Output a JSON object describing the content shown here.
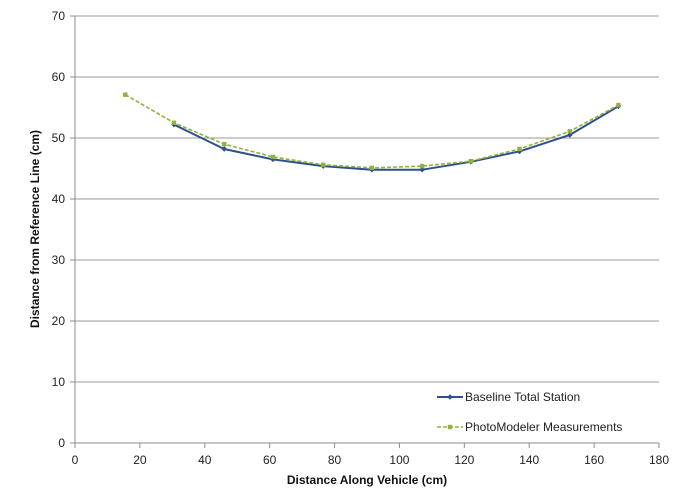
{
  "chart_data": {
    "type": "line",
    "title": "",
    "xlabel": "Distance Along Vehicle (cm)",
    "ylabel": "Distance from Reference Line (cm)",
    "xlim": [
      0,
      180
    ],
    "ylim": [
      0,
      70
    ],
    "xticks": [
      "0",
      "20",
      "40",
      "60",
      "80",
      "100",
      "120",
      "140",
      "160",
      "180"
    ],
    "yticks": [
      "0",
      "10",
      "20",
      "30",
      "40",
      "50",
      "60",
      "70"
    ],
    "grid": "horizontal",
    "legend_position": "bottom-right",
    "series": [
      {
        "name": "Baseline Total Station",
        "color": "#2f4f8f",
        "line_style": "solid",
        "marker": "diamond",
        "x": [
          30.5,
          46,
          61,
          76.5,
          91.5,
          107,
          122,
          137,
          152.5,
          167.5
        ],
        "y": [
          52.2,
          48.2,
          46.5,
          45.4,
          44.8,
          44.8,
          46.1,
          47.8,
          50.5,
          55.2
        ]
      },
      {
        "name": "PhotoModeler Measurements",
        "color": "#8db33e",
        "line_style": "dashed",
        "marker": "square",
        "x": [
          15.5,
          30.5,
          46,
          61,
          76.5,
          91.5,
          107,
          122,
          137,
          152.5,
          167.5
        ],
        "y": [
          57.1,
          52.5,
          49.0,
          46.9,
          45.6,
          45.1,
          45.4,
          46.2,
          48.2,
          51.1,
          55.4
        ]
      }
    ]
  }
}
